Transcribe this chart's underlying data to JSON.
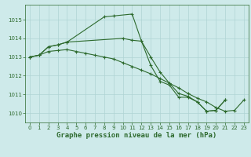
{
  "title": "Graphe pression niveau de la mer (hPa)",
  "series": {
    "s1_x": [
      0,
      1,
      2,
      3,
      4,
      8,
      9,
      11,
      12,
      13,
      14,
      15,
      16,
      17,
      18,
      19,
      20,
      21,
      22,
      23
    ],
    "s1_y": [
      1013.0,
      1013.1,
      1013.55,
      1013.65,
      1013.8,
      1015.15,
      1015.2,
      1015.3,
      1013.85,
      1012.55,
      1011.7,
      1011.5,
      1010.85,
      1010.85,
      1010.6,
      1010.1,
      1010.15,
      1010.7,
      null,
      null
    ],
    "s2_x": [
      0,
      1,
      2,
      3,
      4,
      10,
      11,
      12,
      13,
      14,
      15,
      16,
      17,
      18,
      19,
      20,
      21,
      22,
      23
    ],
    "s2_y": [
      1013.0,
      1013.1,
      1013.55,
      1013.65,
      1013.8,
      1014.0,
      1013.9,
      1013.85,
      1013.0,
      1012.2,
      1011.6,
      1011.05,
      1010.9,
      1010.6,
      1010.1,
      1010.15,
      1010.7,
      null,
      null
    ],
    "s3_x": [
      0,
      1,
      2,
      3,
      4,
      5,
      6,
      7,
      8,
      9,
      10,
      11,
      12,
      13,
      14,
      15,
      16,
      17,
      18,
      19,
      20,
      21,
      22,
      23
    ],
    "s3_y": [
      1013.0,
      1013.1,
      1013.3,
      1013.35,
      1013.4,
      1013.3,
      1013.2,
      1013.1,
      1013.0,
      1012.9,
      1012.7,
      1012.5,
      1012.3,
      1012.1,
      1011.85,
      1011.6,
      1011.35,
      1011.05,
      1010.8,
      1010.6,
      1010.3,
      1010.1,
      1010.15,
      1010.7
    ]
  },
  "line_color": "#2d6a2d",
  "background_color": "#ceeaea",
  "grid_color": "#afd4d4",
  "ylim": [
    1009.5,
    1015.8
  ],
  "yticks": [
    1010,
    1011,
    1012,
    1013,
    1014,
    1015
  ],
  "xticks": [
    0,
    1,
    2,
    3,
    4,
    5,
    6,
    7,
    8,
    9,
    10,
    11,
    12,
    13,
    14,
    15,
    16,
    17,
    18,
    19,
    20,
    21,
    22,
    23
  ],
  "tick_fontsize": 5.0,
  "title_fontsize": 6.5,
  "marker_size": 2.5,
  "line_width": 0.8
}
